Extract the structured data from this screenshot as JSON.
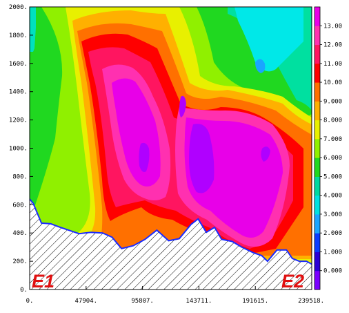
{
  "chart_data": {
    "type": "heatmap",
    "title": "",
    "xlabel": "",
    "ylabel": "",
    "xlim": [
      0,
      239518
    ],
    "ylim": [
      0,
      2000
    ],
    "x_ticks": [
      "0.",
      "47904.",
      "95807.",
      "143711.",
      "191615.",
      "239518."
    ],
    "y_ticks": [
      "0.",
      "200.",
      "400.",
      "600.",
      "800.",
      "1000.",
      "1200.",
      "1400.",
      "1600.",
      "1800.",
      "2000."
    ],
    "colorbar": {
      "labels": [
        "0.000",
        "1.000",
        "2.000",
        "3.000",
        "4.000",
        "5.000",
        "6.000",
        "7.000",
        "8.000",
        "9.000",
        "10.00",
        "11.00",
        "12.00",
        "13.00"
      ],
      "colors": [
        "#7a00ff",
        "#2a00d6",
        "#0a3cff",
        "#1aa5ff",
        "#00e0e0",
        "#00d8a0",
        "#20d820",
        "#90f000",
        "#e8f000",
        "#ffb000",
        "#ff7000",
        "#ff0000",
        "#ff1560",
        "#ff30b0",
        "#e800e8"
      ]
    },
    "terrain": [
      [
        0,
        640
      ],
      [
        3000,
        610
      ],
      [
        10000,
        470
      ],
      [
        18000,
        465
      ],
      [
        26000,
        440
      ],
      [
        33000,
        420
      ],
      [
        42000,
        395
      ],
      [
        52000,
        405
      ],
      [
        62000,
        400
      ],
      [
        70000,
        370
      ],
      [
        78000,
        290
      ],
      [
        88000,
        310
      ],
      [
        98000,
        355
      ],
      [
        108000,
        420
      ],
      [
        118000,
        345
      ],
      [
        127000,
        360
      ],
      [
        137000,
        460
      ],
      [
        143000,
        500
      ],
      [
        150000,
        405
      ],
      [
        157000,
        440
      ],
      [
        163000,
        355
      ],
      [
        172000,
        340
      ],
      [
        180000,
        300
      ],
      [
        190000,
        260
      ],
      [
        197000,
        240
      ],
      [
        202000,
        200
      ],
      [
        210000,
        280
      ],
      [
        218000,
        280
      ],
      [
        223000,
        220
      ],
      [
        229000,
        200
      ],
      [
        235000,
        200
      ],
      [
        239518,
        180
      ]
    ],
    "annotations": [
      "E1",
      "E2"
    ]
  }
}
